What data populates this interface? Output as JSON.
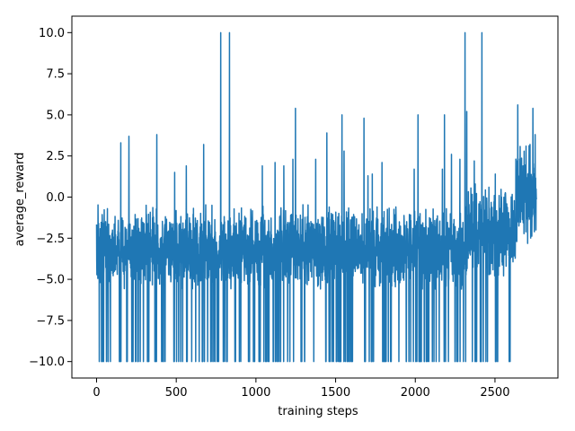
{
  "chart_data": {
    "type": "line",
    "title": "",
    "xlabel": "training steps",
    "ylabel": "average_reward",
    "xlim": [
      -155,
      2895
    ],
    "ylim": [
      -11.0,
      11.0
    ],
    "xticks": [
      0,
      500,
      1000,
      1500,
      2000,
      2500
    ],
    "xtick_labels": [
      "0",
      "500",
      "1000",
      "1500",
      "2000",
      "2500"
    ],
    "yticks": [
      -10.0,
      -7.5,
      -5.0,
      -2.5,
      0.0,
      2.5,
      5.0,
      7.5,
      10.0
    ],
    "ytick_labels": [
      "−10.0",
      "−7.5",
      "−5.0",
      "−2.5",
      "0.0",
      "2.5",
      "5.0",
      "7.5",
      "10.0"
    ],
    "grid": false,
    "legend": "none",
    "series": [
      {
        "color": "#1f77b4",
        "x_start": 0,
        "x_end": 2760,
        "generator": {
          "seed": 20240611,
          "noise_phases": [
            {
              "until_x": 2330,
              "center": -2.6,
              "band_low": -5.6,
              "band_high": -0.4
            },
            {
              "until_x": 2630,
              "center": -1.9,
              "band_low": -4.8,
              "band_high": 0.9
            },
            {
              "until_x": 2760,
              "center": 0.3,
              "band_low": -3.2,
              "band_high": 3.4
            }
          ],
          "floor_value": -10.0,
          "floor_regions_until_x": 2610,
          "floor_probability": 0.08
        },
        "spikes": [
          {
            "x": 152,
            "y": 3.3
          },
          {
            "x": 203,
            "y": 3.7
          },
          {
            "x": 378,
            "y": 3.8
          },
          {
            "x": 490,
            "y": 1.5
          },
          {
            "x": 563,
            "y": 1.9
          },
          {
            "x": 672,
            "y": 3.2
          },
          {
            "x": 779,
            "y": 10.0
          },
          {
            "x": 834,
            "y": 10.0
          },
          {
            "x": 1040,
            "y": 1.9
          },
          {
            "x": 1120,
            "y": 2.1
          },
          {
            "x": 1175,
            "y": 1.9
          },
          {
            "x": 1232,
            "y": 2.3
          },
          {
            "x": 1248,
            "y": 5.4
          },
          {
            "x": 1375,
            "y": 2.3
          },
          {
            "x": 1445,
            "y": 3.9
          },
          {
            "x": 1540,
            "y": 5.0
          },
          {
            "x": 1553,
            "y": 2.8
          },
          {
            "x": 1678,
            "y": 4.8
          },
          {
            "x": 1703,
            "y": 1.3
          },
          {
            "x": 1730,
            "y": 1.4
          },
          {
            "x": 1791,
            "y": 2.1
          },
          {
            "x": 1993,
            "y": 1.7
          },
          {
            "x": 2017,
            "y": 5.0
          },
          {
            "x": 2170,
            "y": 1.7
          },
          {
            "x": 2183,
            "y": 5.0
          },
          {
            "x": 2227,
            "y": 2.6
          },
          {
            "x": 2280,
            "y": 2.3
          },
          {
            "x": 2312,
            "y": 10.0
          },
          {
            "x": 2323,
            "y": 5.2
          },
          {
            "x": 2370,
            "y": 2.2
          },
          {
            "x": 2418,
            "y": 10.0
          },
          {
            "x": 2502,
            "y": 1.4
          },
          {
            "x": 2643,
            "y": 5.6
          },
          {
            "x": 2695,
            "y": 3.1
          },
          {
            "x": 2720,
            "y": 3.2
          },
          {
            "x": 2738,
            "y": 5.4
          },
          {
            "x": 2752,
            "y": 3.8
          }
        ]
      }
    ]
  }
}
